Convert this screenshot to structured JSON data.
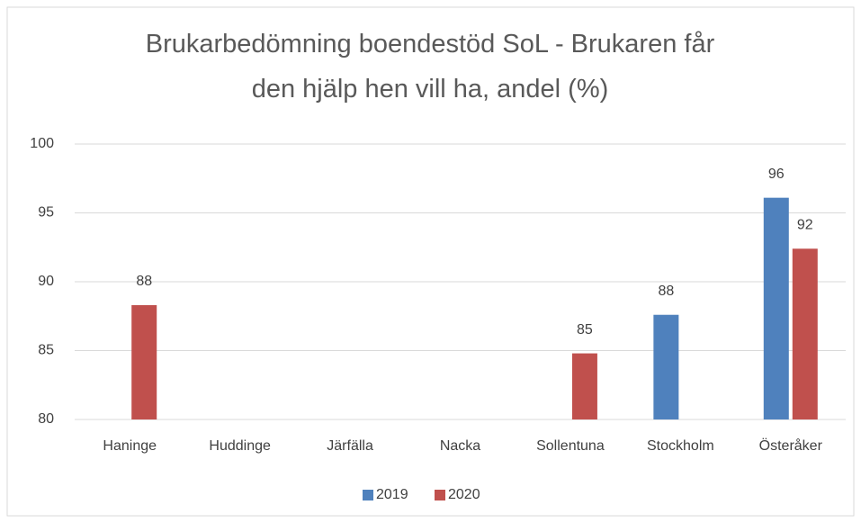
{
  "chart_data": {
    "type": "bar",
    "title": "Brukarbedömning boendestöd SoL - Brukaren får den hjälp hen vill ha, andel (%)",
    "categories": [
      "Haninge",
      "Huddinge",
      "Järfälla",
      "Nacka",
      "Sollentuna",
      "Stockholm",
      "Österåker"
    ],
    "series": [
      {
        "name": "2019",
        "color": "#4f81bd",
        "values": [
          null,
          null,
          null,
          null,
          null,
          87.6,
          96.1
        ],
        "value_labels": [
          null,
          null,
          null,
          null,
          null,
          "88",
          "96"
        ]
      },
      {
        "name": "2020",
        "color": "#c0504d",
        "values": [
          88.3,
          null,
          null,
          null,
          84.8,
          null,
          92.4
        ],
        "value_labels": [
          "88",
          null,
          null,
          null,
          "85",
          null,
          "92"
        ]
      }
    ],
    "ylim": [
      80,
      100
    ],
    "yticks": [
      80,
      85,
      90,
      95,
      100
    ],
    "grid": true,
    "legend": "bottom"
  }
}
